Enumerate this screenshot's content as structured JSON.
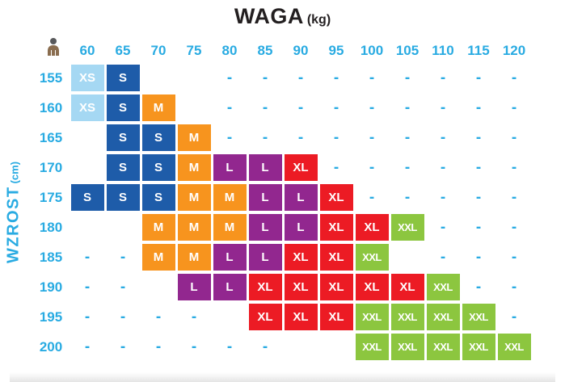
{
  "title": {
    "text": "WAGA",
    "unit": "(kg)"
  },
  "y_axis_label": {
    "text": "WZROST",
    "unit": "(cm)"
  },
  "icons": {
    "corner": "person-height-icon"
  },
  "colors": {
    "accent_cyan": "#29ABE2",
    "title_black": "#231F20",
    "cell_text": "#FFFFFF"
  },
  "chart_data": {
    "type": "heatmap",
    "title": "WAGA (kg)",
    "xlabel": "WAGA (kg)",
    "ylabel": "WZROST (cm)",
    "columns": [
      "60",
      "65",
      "70",
      "75",
      "80",
      "85",
      "90",
      "95",
      "100",
      "105",
      "110",
      "115",
      "120"
    ],
    "rows": [
      "155",
      "160",
      "165",
      "170",
      "175",
      "180",
      "185",
      "190",
      "195",
      "200"
    ],
    "empty_marker": "-",
    "legend_sizes": [
      "XS",
      "S",
      "M",
      "L",
      "XL",
      "XXL"
    ],
    "size_colors": {
      "XS": "#A5D8F3",
      "S": "#1E5CA9",
      "M": "#F7941E",
      "L": "#92278F",
      "XL": "#EC1B24",
      "XXL": "#8CC63F"
    },
    "matrix": [
      [
        "XS",
        "S",
        "",
        "",
        "-",
        "-",
        "-",
        "-",
        "-",
        "-",
        "-",
        "-",
        "-"
      ],
      [
        "XS",
        "S",
        "M",
        "",
        "-",
        "-",
        "-",
        "-",
        "-",
        "-",
        "-",
        "-",
        "-"
      ],
      [
        "",
        "S",
        "S",
        "M",
        "-",
        "-",
        "-",
        "-",
        "-",
        "-",
        "-",
        "-",
        "-"
      ],
      [
        "",
        "S",
        "S",
        "M",
        "L",
        "L",
        "XL",
        "-",
        "-",
        "-",
        "-",
        "-",
        "-"
      ],
      [
        "S",
        "S",
        "S",
        "M",
        "M",
        "L",
        "L",
        "XL",
        "-",
        "-",
        "-",
        "-",
        "-"
      ],
      [
        "",
        "",
        "M",
        "M",
        "M",
        "L",
        "L",
        "XL",
        "XL",
        "XXL",
        "-",
        "-",
        "-"
      ],
      [
        "-",
        "-",
        "M",
        "M",
        "L",
        "L",
        "XL",
        "XL",
        "XXL",
        "",
        "-",
        "-",
        "-"
      ],
      [
        "-",
        "-",
        "",
        "L",
        "L",
        "XL",
        "XL",
        "XL",
        "XL",
        "XL",
        "XXL",
        "-",
        "-"
      ],
      [
        "-",
        "-",
        "-",
        "-",
        "",
        "XL",
        "XL",
        "XL",
        "XXL",
        "XXL",
        "XXL",
        "XXL",
        "-"
      ],
      [
        "-",
        "-",
        "-",
        "-",
        "-",
        "-",
        "",
        "",
        "XXL",
        "XXL",
        "XXL",
        "XXL",
        "XXL"
      ]
    ]
  }
}
